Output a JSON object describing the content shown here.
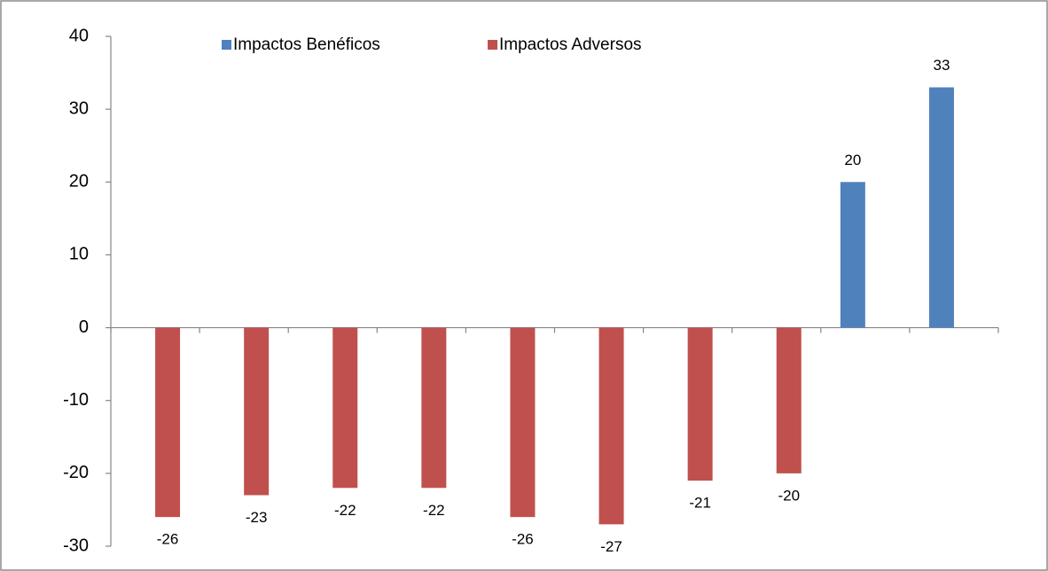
{
  "chart_data": {
    "type": "bar",
    "categories": [
      null,
      null,
      null,
      null,
      null,
      null,
      null,
      null,
      null,
      null
    ],
    "series": [
      {
        "name": "Impactos Benéficos",
        "color": "#4f81bd",
        "values": [
          null,
          null,
          null,
          null,
          null,
          null,
          null,
          null,
          20,
          33
        ]
      },
      {
        "name": "Impactos Adversos",
        "color": "#c0504d",
        "values": [
          -26,
          -23,
          -22,
          -22,
          -26,
          -27,
          -21,
          -20,
          null,
          null
        ]
      }
    ],
    "ylim": [
      -30,
      40
    ],
    "yticks": [
      -30,
      -20,
      -10,
      0,
      10,
      20,
      30,
      40
    ],
    "legend": "top"
  }
}
